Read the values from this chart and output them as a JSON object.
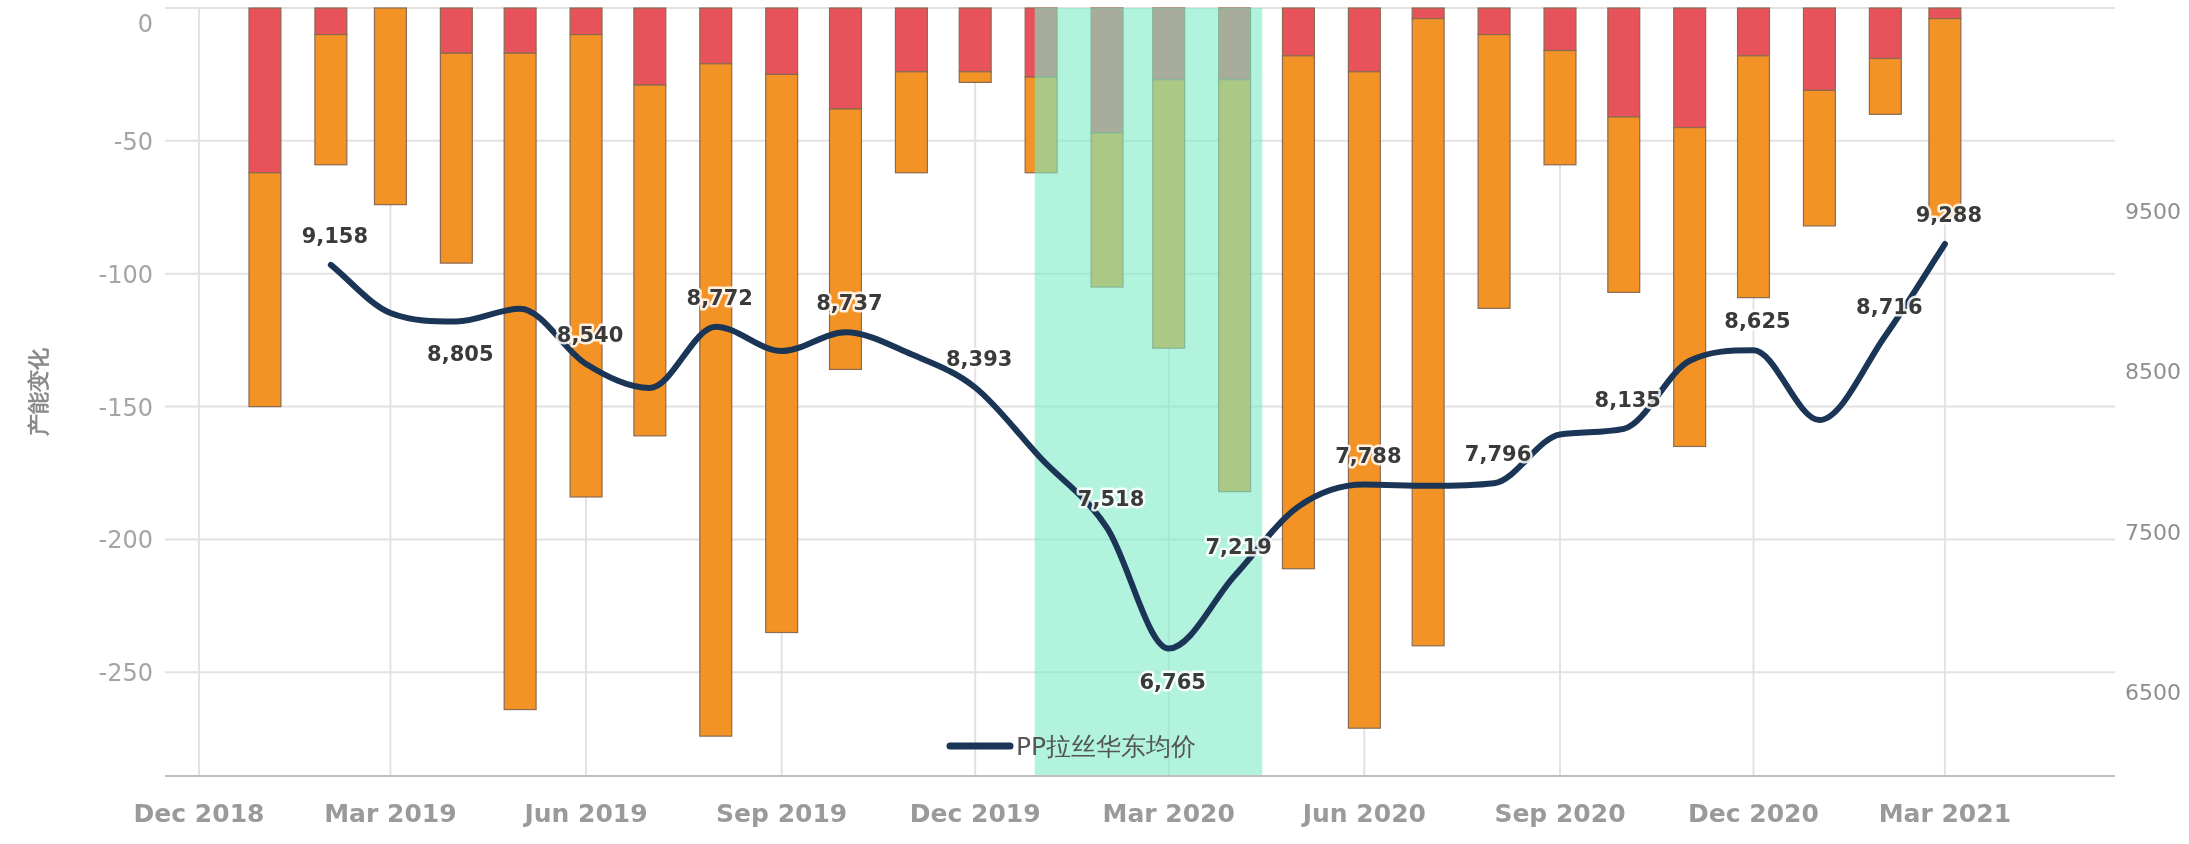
{
  "chart_data": {
    "type": "bar",
    "stacked": true,
    "x": [
      "2019-01",
      "2019-02",
      "2019-03",
      "2019-04",
      "2019-05",
      "2019-06",
      "2019-07",
      "2019-08",
      "2019-09",
      "2019-10",
      "2019-11",
      "2019-12",
      "2020-01",
      "2020-02",
      "2020-03",
      "2020-04",
      "2020-05",
      "2020-06",
      "2020-07",
      "2020-08",
      "2020-09",
      "2020-10",
      "2020-11",
      "2020-12",
      "2021-01",
      "2021-02",
      "2021-03"
    ],
    "series": [
      {
        "color": "#e8525a",
        "values": [
          -62,
          -10,
          0,
          -17,
          -17,
          -10,
          -29,
          -21,
          -25,
          -38,
          -24,
          -24,
          -26,
          -47,
          -27,
          -27,
          -18,
          -24,
          -4,
          -10,
          -16,
          -41,
          -45,
          -18,
          -31,
          -19,
          -4
        ]
      },
      {
        "color": "#f39325",
        "values": [
          -88,
          -49,
          -74,
          -79,
          -247,
          -174,
          -132,
          -253,
          -210,
          -98,
          -38,
          -4,
          -36,
          -58,
          -101,
          -155,
          -193,
          -247,
          -236,
          -103,
          -43,
          -66,
          -120,
          -91,
          -51,
          -21,
          -75
        ]
      },
      {
        "type": "line",
        "axis": "y2",
        "name": "PP拉丝华东均价",
        "color": "#1b3557",
        "x": [
          "2019-02",
          "2019-03",
          "2019-04",
          "2019-05",
          "2019-06",
          "2019-07",
          "2019-08",
          "2019-09",
          "2019-10",
          "2019-11",
          "2019-12",
          "2020-01",
          "2020-02",
          "2020-03",
          "2020-04",
          "2020-05",
          "2020-06",
          "2020-07",
          "2020-08",
          "2020-09",
          "2020-10",
          "2020-11",
          "2020-12",
          "2021-01",
          "2021-02",
          "2021-03"
        ],
        "values": [
          9158,
          8858,
          8805,
          8884,
          8540,
          8390,
          8772,
          8620,
          8737,
          8600,
          8393,
          7950,
          7518,
          6765,
          7219,
          7650,
          7788,
          7780,
          7796,
          8100,
          8135,
          8560,
          8625,
          8190,
          8716,
          9288
        ],
        "value_labels": [
          "9,158",
          null,
          "8,805",
          null,
          "8,540",
          null,
          "8,772",
          null,
          "8,737",
          null,
          "8,393",
          null,
          "7,518",
          "6,765",
          "7,219",
          null,
          "7,788",
          null,
          "7,796",
          null,
          "8,135",
          null,
          "8,625",
          null,
          "8,716",
          "9,288"
        ]
      }
    ],
    "ylabel": "产能变化",
    "ylim": [
      -289,
      0
    ],
    "yticks": [
      0,
      -50,
      -100,
      -150,
      -200,
      -250
    ],
    "y2lim": [
      5970,
      10760
    ],
    "y2ticks": [
      6500,
      7500,
      8500,
      9500
    ],
    "xlim": [
      "2018-11-15",
      "2021-05-20"
    ],
    "xticks": [
      {
        "value": "2018-12",
        "label": "Dec 2018"
      },
      {
        "value": "2019-03",
        "label": "Mar 2019"
      },
      {
        "value": "2019-06",
        "label": "Jun 2019"
      },
      {
        "value": "2019-09",
        "label": "Sep 2019"
      },
      {
        "value": "2019-12",
        "label": "Dec 2019"
      },
      {
        "value": "2020-03",
        "label": "Mar 2020"
      },
      {
        "value": "2020-06",
        "label": "Jun 2020"
      },
      {
        "value": "2020-09",
        "label": "Sep 2020"
      },
      {
        "value": "2020-12",
        "label": "Dec 2020"
      },
      {
        "value": "2021-03",
        "label": "Mar 2021"
      }
    ],
    "bands": [
      {
        "axis": "x",
        "from": "2019-12-29",
        "to": "2020-04-14",
        "color": "#7debc7"
      }
    ],
    "grid": true,
    "legend": "bottom"
  }
}
